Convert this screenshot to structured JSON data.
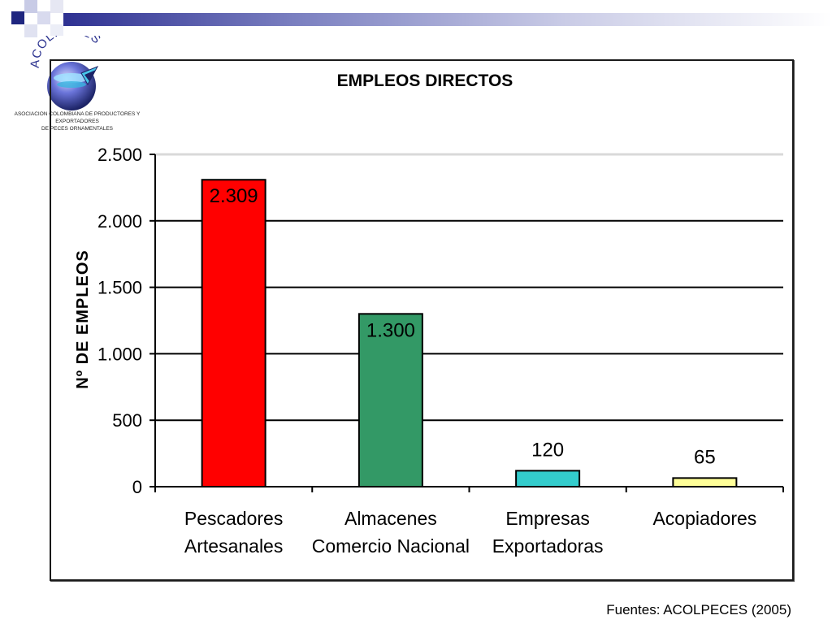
{
  "logo": {
    "name": "ACOLPECES",
    "subtitle_line1": "ASOCIACION COLOMBIANA DE PRODUCTORES Y EXPORTADORES",
    "subtitle_line2": "DE PECES ORNAMENTALES"
  },
  "source": "Fuentes: ACOLPECES (2005)",
  "colors": {
    "bar_1": "#ff0000",
    "bar_2": "#339966",
    "bar_3": "#33cccc",
    "bar_4": "#ffff99",
    "frame": "#1a1a1a",
    "deco_dark": "#1f2680"
  },
  "chart_data": {
    "type": "bar",
    "title": "EMPLEOS DIRECTOS",
    "xlabel": "",
    "ylabel": "Nº DE EMPLEOS",
    "categories": [
      [
        "Pescadores",
        "Artesanales"
      ],
      [
        "Almacenes",
        "Comercio  Nacional"
      ],
      [
        "Empresas",
        "Exportadoras"
      ],
      [
        "Acopiadores"
      ]
    ],
    "values": [
      2309,
      1300,
      120,
      65
    ],
    "value_labels": [
      "2.309",
      "1.300",
      "120",
      "65"
    ],
    "ylim": [
      0,
      2500
    ],
    "yticks": [
      0,
      500,
      1000,
      1500,
      2000,
      2500
    ],
    "ytick_labels": [
      "0",
      "500",
      "1.000",
      "1.500",
      "2.000",
      "2.500"
    ],
    "grid": true,
    "legend": "none"
  }
}
